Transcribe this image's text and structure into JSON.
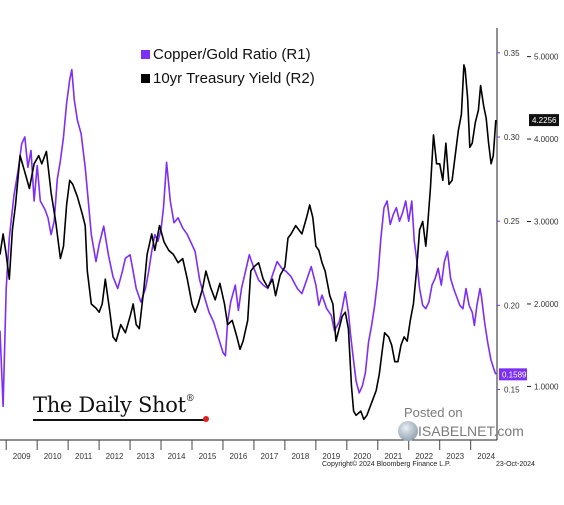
{
  "chart_data": {
    "type": "line",
    "title": "",
    "xlabel": "",
    "x_ticks": [
      "2009",
      "2010",
      "2011",
      "2012",
      "2013",
      "2014",
      "2015",
      "2016",
      "2017",
      "2018",
      "2019",
      "2020",
      "2021",
      "2022",
      "2023",
      "2024"
    ],
    "x_range": [
      2008.8,
      2024.85
    ],
    "y_axis_r1": {
      "ticks": [
        "0.15",
        "0.20",
        "0.25",
        "0.30",
        "0.35"
      ],
      "range": [
        0.12,
        0.36
      ]
    },
    "y_axis_r2": {
      "ticks": [
        "1.0000",
        "2.0000",
        "3.0000",
        "4.0000",
        "5.0000"
      ],
      "range": [
        0.35,
        5.25
      ]
    },
    "grid": false,
    "legend_position": "top-left",
    "series": [
      {
        "name": "Copper/Gold Ratio (R1)",
        "axis": "R1",
        "color": "#7b2ff7",
        "last_value_label": "0.1589",
        "points": [
          [
            2008.8,
            0.185
          ],
          [
            2008.9,
            0.14
          ],
          [
            2009.0,
            0.21
          ],
          [
            2009.1,
            0.24
          ],
          [
            2009.25,
            0.265
          ],
          [
            2009.4,
            0.282
          ],
          [
            2009.5,
            0.296
          ],
          [
            2009.6,
            0.3
          ],
          [
            2009.7,
            0.282
          ],
          [
            2009.8,
            0.292
          ],
          [
            2009.9,
            0.262
          ],
          [
            2010.0,
            0.283
          ],
          [
            2010.1,
            0.262
          ],
          [
            2010.25,
            0.257
          ],
          [
            2010.35,
            0.252
          ],
          [
            2010.45,
            0.242
          ],
          [
            2010.55,
            0.25
          ],
          [
            2010.65,
            0.275
          ],
          [
            2010.75,
            0.286
          ],
          [
            2010.85,
            0.3
          ],
          [
            2010.95,
            0.32
          ],
          [
            2011.05,
            0.334
          ],
          [
            2011.12,
            0.34
          ],
          [
            2011.2,
            0.322
          ],
          [
            2011.3,
            0.31
          ],
          [
            2011.42,
            0.302
          ],
          [
            2011.55,
            0.282
          ],
          [
            2011.65,
            0.262
          ],
          [
            2011.75,
            0.242
          ],
          [
            2011.9,
            0.226
          ],
          [
            2012.0,
            0.236
          ],
          [
            2012.15,
            0.247
          ],
          [
            2012.3,
            0.23
          ],
          [
            2012.45,
            0.217
          ],
          [
            2012.6,
            0.21
          ],
          [
            2012.75,
            0.22
          ],
          [
            2012.85,
            0.228
          ],
          [
            2013.0,
            0.23
          ],
          [
            2013.1,
            0.22
          ],
          [
            2013.2,
            0.21
          ],
          [
            2013.35,
            0.202
          ],
          [
            2013.5,
            0.21
          ],
          [
            2013.6,
            0.22
          ],
          [
            2013.7,
            0.232
          ],
          [
            2013.8,
            0.242
          ],
          [
            2013.9,
            0.238
          ],
          [
            2014.0,
            0.245
          ],
          [
            2014.08,
            0.258
          ],
          [
            2014.18,
            0.285
          ],
          [
            2014.3,
            0.262
          ],
          [
            2014.42,
            0.249
          ],
          [
            2014.55,
            0.252
          ],
          [
            2014.7,
            0.246
          ],
          [
            2014.85,
            0.242
          ],
          [
            2015.0,
            0.236
          ],
          [
            2015.1,
            0.232
          ],
          [
            2015.25,
            0.215
          ],
          [
            2015.4,
            0.205
          ],
          [
            2015.55,
            0.196
          ],
          [
            2015.7,
            0.19
          ],
          [
            2015.85,
            0.181
          ],
          [
            2016.0,
            0.172
          ],
          [
            2016.08,
            0.17
          ],
          [
            2016.15,
            0.19
          ],
          [
            2016.25,
            0.202
          ],
          [
            2016.4,
            0.212
          ],
          [
            2016.5,
            0.197
          ],
          [
            2016.6,
            0.21
          ],
          [
            2016.75,
            0.222
          ],
          [
            2016.85,
            0.23
          ],
          [
            2017.0,
            0.222
          ],
          [
            2017.15,
            0.215
          ],
          [
            2017.3,
            0.212
          ],
          [
            2017.45,
            0.21
          ],
          [
            2017.6,
            0.218
          ],
          [
            2017.75,
            0.226
          ],
          [
            2017.9,
            0.222
          ],
          [
            2018.05,
            0.22
          ],
          [
            2018.2,
            0.217
          ],
          [
            2018.4,
            0.21
          ],
          [
            2018.55,
            0.207
          ],
          [
            2018.7,
            0.215
          ],
          [
            2018.85,
            0.223
          ],
          [
            2019.0,
            0.212
          ],
          [
            2019.1,
            0.2
          ],
          [
            2019.2,
            0.206
          ],
          [
            2019.35,
            0.198
          ],
          [
            2019.5,
            0.194
          ],
          [
            2019.6,
            0.185
          ],
          [
            2019.75,
            0.19
          ],
          [
            2019.85,
            0.198
          ],
          [
            2019.95,
            0.208
          ],
          [
            2020.05,
            0.196
          ],
          [
            2020.12,
            0.183
          ],
          [
            2020.2,
            0.17
          ],
          [
            2020.3,
            0.155
          ],
          [
            2020.4,
            0.148
          ],
          [
            2020.5,
            0.152
          ],
          [
            2020.6,
            0.16
          ],
          [
            2020.7,
            0.178
          ],
          [
            2020.8,
            0.188
          ],
          [
            2020.9,
            0.2
          ],
          [
            2021.0,
            0.216
          ],
          [
            2021.1,
            0.24
          ],
          [
            2021.2,
            0.258
          ],
          [
            2021.3,
            0.262
          ],
          [
            2021.4,
            0.248
          ],
          [
            2021.5,
            0.254
          ],
          [
            2021.6,
            0.258
          ],
          [
            2021.7,
            0.25
          ],
          [
            2021.8,
            0.255
          ],
          [
            2021.9,
            0.262
          ],
          [
            2022.0,
            0.25
          ],
          [
            2022.1,
            0.262
          ],
          [
            2022.18,
            0.238
          ],
          [
            2022.25,
            0.228
          ],
          [
            2022.35,
            0.21
          ],
          [
            2022.45,
            0.2
          ],
          [
            2022.55,
            0.198
          ],
          [
            2022.65,
            0.202
          ],
          [
            2022.75,
            0.212
          ],
          [
            2022.85,
            0.216
          ],
          [
            2022.95,
            0.222
          ],
          [
            2023.05,
            0.212
          ],
          [
            2023.15,
            0.226
          ],
          [
            2023.25,
            0.232
          ],
          [
            2023.35,
            0.216
          ],
          [
            2023.45,
            0.21
          ],
          [
            2023.55,
            0.205
          ],
          [
            2023.65,
            0.2
          ],
          [
            2023.75,
            0.198
          ],
          [
            2023.85,
            0.21
          ],
          [
            2023.95,
            0.2
          ],
          [
            2024.05,
            0.196
          ],
          [
            2024.12,
            0.188
          ],
          [
            2024.2,
            0.2
          ],
          [
            2024.3,
            0.21
          ],
          [
            2024.35,
            0.205
          ],
          [
            2024.45,
            0.19
          ],
          [
            2024.55,
            0.178
          ],
          [
            2024.65,
            0.168
          ],
          [
            2024.75,
            0.162
          ],
          [
            2024.81,
            0.159
          ]
        ]
      },
      {
        "name": "10yr Treasury Yield (R2)",
        "axis": "R2",
        "color": "#000000",
        "last_value_label": "4.2256",
        "points": [
          [
            2008.8,
            2.6
          ],
          [
            2008.9,
            2.85
          ],
          [
            2009.0,
            2.6
          ],
          [
            2009.1,
            2.3
          ],
          [
            2009.2,
            2.9
          ],
          [
            2009.3,
            3.2
          ],
          [
            2009.45,
            3.8
          ],
          [
            2009.6,
            3.6
          ],
          [
            2009.75,
            3.4
          ],
          [
            2009.9,
            3.7
          ],
          [
            2010.05,
            3.8
          ],
          [
            2010.15,
            3.7
          ],
          [
            2010.3,
            3.85
          ],
          [
            2010.45,
            3.35
          ],
          [
            2010.6,
            3.0
          ],
          [
            2010.75,
            2.55
          ],
          [
            2010.85,
            2.7
          ],
          [
            2010.95,
            3.2
          ],
          [
            2011.05,
            3.5
          ],
          [
            2011.15,
            3.45
          ],
          [
            2011.3,
            3.3
          ],
          [
            2011.45,
            3.1
          ],
          [
            2011.55,
            2.95
          ],
          [
            2011.62,
            2.4
          ],
          [
            2011.75,
            2.0
          ],
          [
            2011.9,
            1.95
          ],
          [
            2012.0,
            1.9
          ],
          [
            2012.1,
            2.0
          ],
          [
            2012.2,
            2.3
          ],
          [
            2012.35,
            1.9
          ],
          [
            2012.45,
            1.6
          ],
          [
            2012.55,
            1.55
          ],
          [
            2012.7,
            1.75
          ],
          [
            2012.85,
            1.65
          ],
          [
            2013.0,
            1.85
          ],
          [
            2013.1,
            2.0
          ],
          [
            2013.2,
            1.75
          ],
          [
            2013.3,
            1.7
          ],
          [
            2013.45,
            2.2
          ],
          [
            2013.55,
            2.6
          ],
          [
            2013.7,
            2.85
          ],
          [
            2013.8,
            2.65
          ],
          [
            2013.95,
            2.95
          ],
          [
            2014.1,
            2.75
          ],
          [
            2014.25,
            2.65
          ],
          [
            2014.4,
            2.6
          ],
          [
            2014.55,
            2.5
          ],
          [
            2014.7,
            2.55
          ],
          [
            2014.85,
            2.3
          ],
          [
            2015.0,
            2.0
          ],
          [
            2015.1,
            1.9
          ],
          [
            2015.2,
            2.0
          ],
          [
            2015.35,
            2.2
          ],
          [
            2015.45,
            2.4
          ],
          [
            2015.6,
            2.2
          ],
          [
            2015.75,
            2.05
          ],
          [
            2015.9,
            2.25
          ],
          [
            2016.05,
            2.0
          ],
          [
            2016.15,
            1.75
          ],
          [
            2016.3,
            1.8
          ],
          [
            2016.45,
            1.6
          ],
          [
            2016.55,
            1.45
          ],
          [
            2016.65,
            1.55
          ],
          [
            2016.8,
            1.8
          ],
          [
            2016.9,
            2.4
          ],
          [
            2017.0,
            2.45
          ],
          [
            2017.15,
            2.5
          ],
          [
            2017.3,
            2.3
          ],
          [
            2017.45,
            2.2
          ],
          [
            2017.6,
            2.3
          ],
          [
            2017.7,
            2.1
          ],
          [
            2017.85,
            2.35
          ],
          [
            2018.0,
            2.45
          ],
          [
            2018.1,
            2.8
          ],
          [
            2018.2,
            2.85
          ],
          [
            2018.35,
            2.95
          ],
          [
            2018.45,
            2.9
          ],
          [
            2018.55,
            2.85
          ],
          [
            2018.7,
            3.05
          ],
          [
            2018.8,
            3.2
          ],
          [
            2018.9,
            3.05
          ],
          [
            2019.0,
            2.7
          ],
          [
            2019.1,
            2.65
          ],
          [
            2019.2,
            2.5
          ],
          [
            2019.3,
            2.4
          ],
          [
            2019.45,
            2.1
          ],
          [
            2019.55,
            2.0
          ],
          [
            2019.65,
            1.55
          ],
          [
            2019.75,
            1.7
          ],
          [
            2019.85,
            1.85
          ],
          [
            2019.95,
            1.9
          ],
          [
            2020.05,
            1.7
          ],
          [
            2020.15,
            1.0
          ],
          [
            2020.22,
            0.7
          ],
          [
            2020.3,
            0.65
          ],
          [
            2020.45,
            0.7
          ],
          [
            2020.55,
            0.6
          ],
          [
            2020.65,
            0.65
          ],
          [
            2020.75,
            0.75
          ],
          [
            2020.85,
            0.85
          ],
          [
            2020.95,
            0.95
          ],
          [
            2021.05,
            1.15
          ],
          [
            2021.15,
            1.45
          ],
          [
            2021.22,
            1.65
          ],
          [
            2021.35,
            1.6
          ],
          [
            2021.45,
            1.5
          ],
          [
            2021.55,
            1.3
          ],
          [
            2021.65,
            1.3
          ],
          [
            2021.75,
            1.5
          ],
          [
            2021.85,
            1.6
          ],
          [
            2021.95,
            1.55
          ],
          [
            2022.05,
            1.8
          ],
          [
            2022.15,
            2.0
          ],
          [
            2022.25,
            2.4
          ],
          [
            2022.35,
            2.9
          ],
          [
            2022.45,
            3.0
          ],
          [
            2022.55,
            2.7
          ],
          [
            2022.6,
            2.9
          ],
          [
            2022.7,
            3.4
          ],
          [
            2022.8,
            4.05
          ],
          [
            2022.9,
            3.7
          ],
          [
            2023.0,
            3.7
          ],
          [
            2023.1,
            3.5
          ],
          [
            2023.2,
            3.95
          ],
          [
            2023.3,
            3.45
          ],
          [
            2023.4,
            3.5
          ],
          [
            2023.5,
            3.8
          ],
          [
            2023.6,
            4.1
          ],
          [
            2023.7,
            4.3
          ],
          [
            2023.78,
            4.9
          ],
          [
            2023.82,
            4.85
          ],
          [
            2023.9,
            4.5
          ],
          [
            2023.97,
            3.9
          ],
          [
            2024.05,
            3.95
          ],
          [
            2024.15,
            4.2
          ],
          [
            2024.25,
            4.35
          ],
          [
            2024.32,
            4.65
          ],
          [
            2024.42,
            4.4
          ],
          [
            2024.5,
            4.25
          ],
          [
            2024.58,
            3.95
          ],
          [
            2024.66,
            3.7
          ],
          [
            2024.73,
            3.8
          ],
          [
            2024.81,
            4.23
          ]
        ]
      }
    ]
  },
  "branding": {
    "publisher": "The Daily Shot",
    "trademark": "®",
    "posted_on": "Posted on",
    "site": "ISABELNET.com"
  },
  "footer": {
    "copyright": "Copyright© 2024 Bloomberg Finance L.P.",
    "date": "23-Oct-2024"
  }
}
